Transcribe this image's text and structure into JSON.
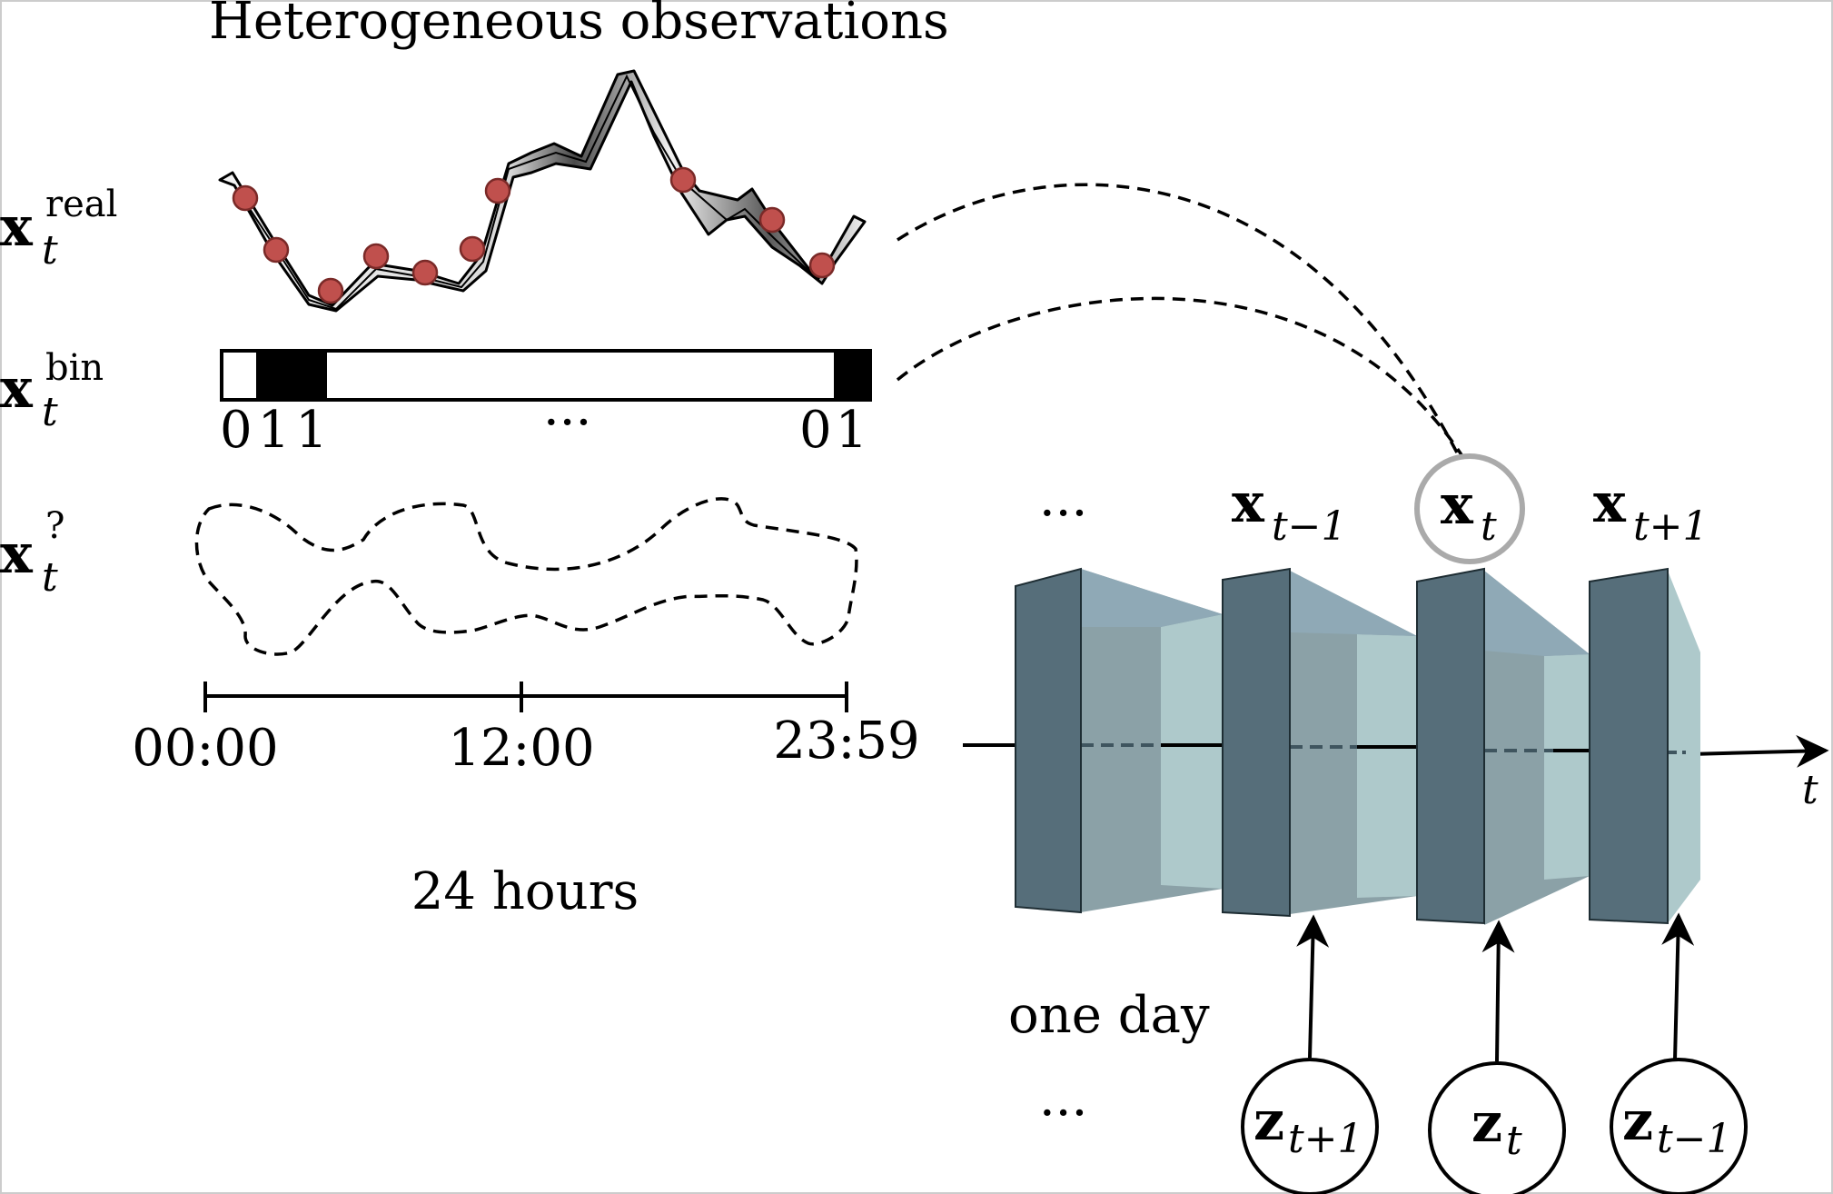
{
  "title": "Heterogeneous observations",
  "rows": {
    "real": {
      "base": "x",
      "sub": "t",
      "sup": "real"
    },
    "bin": {
      "base": "x",
      "sub": "t",
      "sup": "bin"
    },
    "unknown": {
      "base": "x",
      "sub": "t",
      "sup": "?"
    }
  },
  "binary_digits_left": "011",
  "binary_ellipsis": "···",
  "binary_digits_right": "01",
  "timeline": {
    "ticks": [
      "00:00",
      "12:00",
      "23:59"
    ],
    "caption": "24 hours"
  },
  "network": {
    "top_ellipsis": "···",
    "bottom_ellipsis": "···",
    "outputs": [
      {
        "base": "x",
        "sub": "t−1"
      },
      {
        "base": "x",
        "sub": "t"
      },
      {
        "base": "x",
        "sub": "t+1"
      }
    ],
    "inputs": [
      {
        "base": "z",
        "sub": "t+1"
      },
      {
        "base": "z",
        "sub": "t"
      },
      {
        "base": "z",
        "sub": "t−1"
      }
    ],
    "time_axis": "t",
    "day_label": "one day"
  },
  "colors": {
    "block_front": "#566e7a",
    "block_top": "#8fa9b6",
    "block_inner_dark": "#8ca2a8",
    "block_inner_light": "#aec9cb",
    "highlight_circle": "#aaaaaa",
    "observation_dot": "#c0504d"
  }
}
